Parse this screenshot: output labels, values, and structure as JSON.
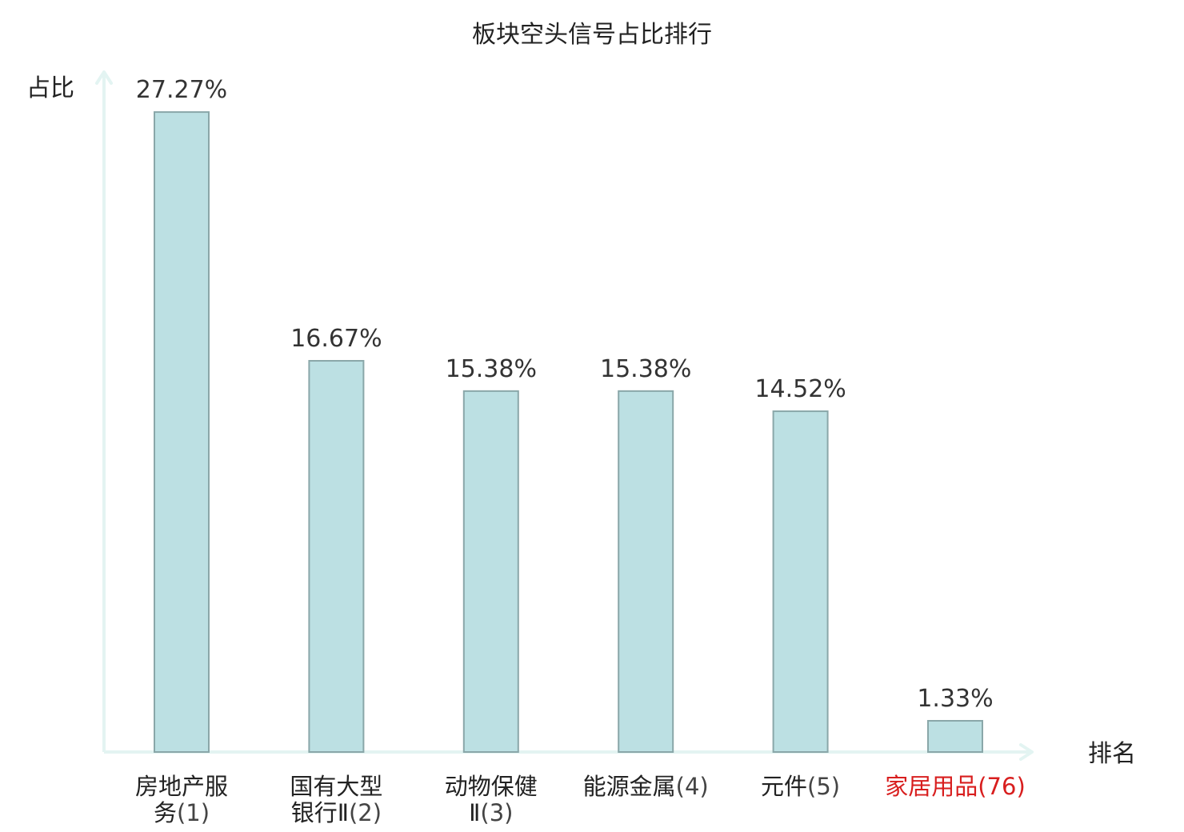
{
  "chart_data": {
    "type": "bar",
    "title": "板块空头信号占比排行",
    "ylabel": "占比",
    "xlabel": "排名",
    "grid": false,
    "ylim": [
      0,
      28.5
    ],
    "value_suffix": "%",
    "categories": [
      {
        "lines": [
          "房地产服",
          "务"
        ],
        "rank": "(1)",
        "highlight": false
      },
      {
        "lines": [
          "国有大型",
          "银行Ⅱ"
        ],
        "rank": "(2)",
        "highlight": false
      },
      {
        "lines": [
          "动物保健",
          "Ⅱ"
        ],
        "rank": "(3)",
        "highlight": false
      },
      {
        "lines": [
          "能源金属"
        ],
        "rank": "(4)",
        "highlight": false
      },
      {
        "lines": [
          "元件"
        ],
        "rank": "(5)",
        "highlight": false
      },
      {
        "lines": [
          "家居用品"
        ],
        "rank": "(76)",
        "highlight": true
      }
    ],
    "values": [
      27.27,
      16.67,
      15.38,
      15.38,
      14.52,
      1.33
    ],
    "colors": {
      "bar_fill": "#bce0e3",
      "bar_stroke": "#8aa7a9",
      "axis": "#e3f4f2",
      "highlight_text": "#d81e1e"
    }
  }
}
